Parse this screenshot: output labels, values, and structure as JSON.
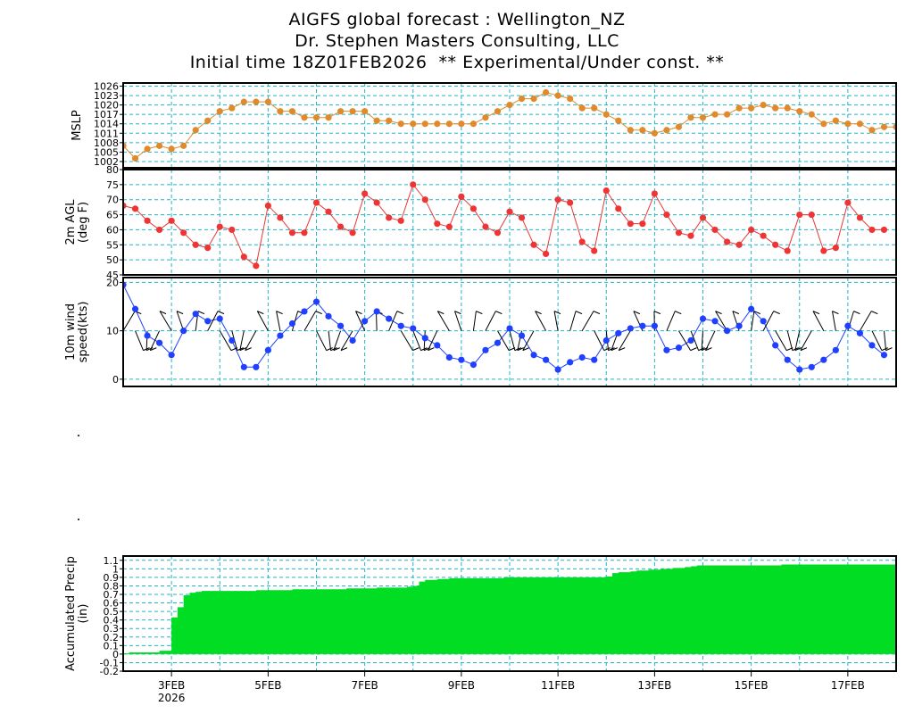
{
  "header": {
    "line1": "AIGFS global forecast : Wellington_NZ",
    "line2": "Dr. Stephen Masters Consulting, LLC",
    "line3": "Initial time 18Z01FEB2026  ** Experimental/Under const. **"
  },
  "colors": {
    "grid": "#22b4c8",
    "mslp": "#e08a2c",
    "temp": "#ee3535",
    "wind": "#2040ff",
    "precip": "#00dd22"
  },
  "x_axis": {
    "labels": [
      "3FEB",
      "5FEB",
      "7FEB",
      "9FEB",
      "11FEB",
      "13FEB",
      "15FEB",
      "17FEB"
    ],
    "label_days": [
      3,
      5,
      7,
      9,
      11,
      13,
      15,
      17
    ],
    "year_label": "2026",
    "start_day": 2.0,
    "end_day": 18.0
  },
  "chart_data": [
    {
      "type": "line",
      "ylabel": "MSLP",
      "y_ticks": [
        "1002",
        "1005",
        "1008",
        "1011",
        "1014",
        "1017",
        "1020",
        "1023",
        "1026"
      ],
      "ylim": [
        1000,
        1027
      ],
      "x_step_hours": 6,
      "x_start_day": 2.0,
      "values": [
        1007,
        1003,
        1006,
        1007,
        1006,
        1007,
        1012,
        1015,
        1018,
        1019,
        1021,
        1021,
        1021,
        1018,
        1018,
        1016,
        1016,
        1016,
        1018,
        1018,
        1018,
        1015,
        1015,
        1014,
        1014,
        1014,
        1014,
        1014,
        1014,
        1014,
        1016,
        1018,
        1020,
        1022,
        1022,
        1024,
        1023,
        1022,
        1019,
        1019,
        1017,
        1015,
        1012,
        1012,
        1011,
        1012,
        1013,
        1016,
        1016,
        1017,
        1017,
        1019,
        1019,
        1020,
        1019,
        1019,
        1018,
        1017,
        1014,
        1015,
        1014,
        1014,
        1012,
        1013,
        1013
      ]
    },
    {
      "type": "line",
      "ylabel": "2m AGL (deg F)",
      "y_ticks": [
        "45",
        "50",
        "55",
        "60",
        "65",
        "70",
        "75",
        "80"
      ],
      "ylim": [
        45,
        80
      ],
      "x_step_hours": 6,
      "x_start_day": 2.0,
      "values": [
        68,
        67,
        63,
        60,
        63,
        59,
        55,
        54,
        61,
        60,
        51,
        48,
        68,
        64,
        59,
        59,
        69,
        66,
        61,
        59,
        72,
        69,
        64,
        63,
        75,
        70,
        62,
        61,
        71,
        67,
        61,
        59,
        66,
        64,
        55,
        52,
        70,
        69,
        56,
        53,
        73,
        67,
        62,
        62,
        72,
        65,
        59,
        58,
        64,
        60,
        56,
        55,
        60,
        58,
        55,
        53,
        65,
        65,
        53,
        54,
        69,
        64,
        60,
        60
      ]
    },
    {
      "type": "line",
      "ylabel": "10m wind speed(kts)",
      "y_ticks": [
        "0",
        "10",
        "20"
      ],
      "ylim": [
        -1.5,
        21
      ],
      "x_step_hours": 6,
      "x_start_day": 2.0,
      "values": [
        19.5,
        14.5,
        9,
        7.5,
        5,
        10,
        13.5,
        12,
        12.5,
        8,
        2.5,
        2.5,
        6,
        9,
        11.5,
        14,
        16,
        13,
        11,
        8,
        12,
        14,
        12.5,
        11,
        10.5,
        8.5,
        7,
        4.5,
        4,
        3,
        6,
        7.5,
        10.5,
        9,
        5,
        4,
        2,
        3.5,
        4.5,
        4,
        8,
        9.5,
        10.5,
        11,
        11,
        6,
        6.5,
        8,
        12.5,
        12,
        10,
        11,
        14.5,
        12,
        7,
        4,
        2,
        2.5,
        4,
        6,
        11,
        9.5,
        7,
        5
      ]
    },
    {
      "type": "area",
      "ylabel": "Accumulated Precip (in)",
      "y_ticks": [
        "-0.2",
        "-0.1",
        "0",
        "0.1",
        "0.2",
        "0.3",
        "0.4",
        "0.5",
        "0.6",
        "0.7",
        "0.8",
        "0.9",
        "1",
        "1.1"
      ],
      "ylim": [
        -0.2,
        1.15
      ],
      "x_step_hours": 3,
      "x_start_day": 2.0,
      "values": [
        0.01,
        0.02,
        0.02,
        0.02,
        0.02,
        0.02,
        0.04,
        0.04,
        0.43,
        0.55,
        0.69,
        0.72,
        0.73,
        0.74,
        0.74,
        0.74,
        0.74,
        0.74,
        0.74,
        0.74,
        0.74,
        0.74,
        0.75,
        0.75,
        0.75,
        0.75,
        0.75,
        0.75,
        0.76,
        0.76,
        0.76,
        0.76,
        0.76,
        0.76,
        0.76,
        0.76,
        0.76,
        0.77,
        0.77,
        0.77,
        0.77,
        0.77,
        0.78,
        0.78,
        0.78,
        0.78,
        0.78,
        0.79,
        0.8,
        0.85,
        0.87,
        0.87,
        0.88,
        0.88,
        0.89,
        0.89,
        0.89,
        0.89,
        0.89,
        0.89,
        0.89,
        0.89,
        0.89,
        0.9,
        0.9,
        0.9,
        0.9,
        0.9,
        0.9,
        0.9,
        0.9,
        0.9,
        0.9,
        0.9,
        0.9,
        0.9,
        0.9,
        0.9,
        0.9,
        0.9,
        0.91,
        0.95,
        0.96,
        0.96,
        0.97,
        0.98,
        0.98,
        0.99,
        0.99,
        1.0,
        1.0,
        1.01,
        1.01,
        1.02,
        1.03,
        1.04,
        1.04,
        1.04,
        1.04,
        1.04,
        1.04,
        1.04,
        1.04,
        1.04,
        1.04,
        1.04,
        1.04,
        1.04,
        1.04,
        1.05,
        1.05,
        1.05,
        1.05,
        1.05,
        1.05,
        1.05,
        1.05,
        1.05,
        1.05,
        1.05,
        1.05,
        1.05,
        1.05,
        1.05,
        1.05,
        1.05,
        1.05,
        1.05,
        1.05
      ]
    }
  ]
}
